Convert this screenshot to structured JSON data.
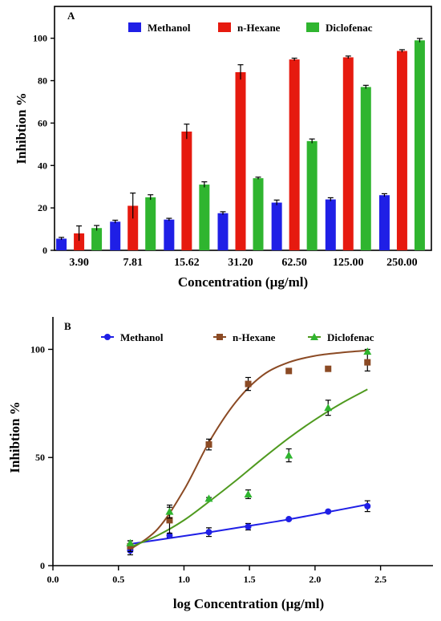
{
  "colors": {
    "methanol": "#1f1fe6",
    "nhexane_bar": "#e61a0f",
    "nhexane_line": "#8b4a24",
    "diclofenac": "#2fb52f",
    "diclofenac_line": "#4f9a1f"
  },
  "chart_data": [
    {
      "panel": "A",
      "type": "bar",
      "xlabel": "Concentration (µg/ml)",
      "ylabel": "Inhibtion %",
      "ylim": [
        0,
        115
      ],
      "yticks": [
        0,
        20,
        40,
        60,
        80,
        100
      ],
      "categories": [
        "3.90",
        "7.81",
        "15.62",
        "31.20",
        "62.50",
        "125.00",
        "250.00"
      ],
      "legend_position": "top",
      "series": [
        {
          "name": "Methanol",
          "values": [
            5.5,
            13.5,
            14.5,
            17.5,
            22.5,
            24,
            26
          ],
          "errors": [
            0.6,
            0.7,
            0.6,
            0.7,
            1.2,
            0.8,
            0.7
          ]
        },
        {
          "name": "n-Hexane",
          "values": [
            8,
            21,
            56,
            84,
            90,
            91,
            94
          ],
          "errors": [
            3.5,
            6,
            3.5,
            3.5,
            0.6,
            0.6,
            0.6
          ]
        },
        {
          "name": "Diclofenac",
          "values": [
            10.5,
            25,
            31,
            34,
            51.5,
            77,
            99
          ],
          "errors": [
            1.2,
            1.2,
            1.3,
            0.5,
            1.0,
            0.8,
            0.9
          ]
        }
      ]
    },
    {
      "panel": "B",
      "type": "scatter",
      "xlabel": "log Concentration (µg/ml)",
      "ylabel": "Inhibtion %",
      "xlim": [
        0,
        2.9
      ],
      "ylim": [
        0,
        115
      ],
      "xticks": [
        0.0,
        0.5,
        1.0,
        1.5,
        2.0,
        2.5
      ],
      "xtick_labels": [
        "0.0",
        "0.5",
        "1.0",
        "1.5",
        "2.0",
        "2.5"
      ],
      "yticks": [
        0,
        50,
        100
      ],
      "legend_position": "top",
      "series": [
        {
          "name": "Methanol",
          "marker": "circle",
          "x": [
            0.59,
            0.89,
            1.19,
            1.49,
            1.8,
            2.1,
            2.4
          ],
          "y": [
            7,
            14,
            15.5,
            18,
            21.5,
            25,
            27.5
          ],
          "errors": [
            2,
            1,
            2,
            1.5,
            0.5,
            0.5,
            2.5
          ]
        },
        {
          "name": "n-Hexane",
          "marker": "square",
          "x": [
            0.59,
            0.89,
            1.19,
            1.49,
            1.8,
            2.1,
            2.4
          ],
          "y": [
            9,
            21,
            56,
            84,
            90,
            91,
            94
          ],
          "errors": [
            2.5,
            6,
            2.5,
            3,
            0.5,
            0.5,
            4
          ]
        },
        {
          "name": "Diclofenac",
          "marker": "triangle",
          "x": [
            0.59,
            0.89,
            1.19,
            1.49,
            1.8,
            2.1,
            2.4
          ],
          "y": [
            10.5,
            25,
            31,
            33,
            51,
            73,
            99
          ],
          "errors": [
            1,
            3,
            0.5,
            2,
            3,
            3.5,
            1
          ]
        }
      ],
      "fits": [
        {
          "series": "Methanol",
          "x": [
            0.59,
            0.9,
            1.2,
            1.5,
            1.8,
            2.1,
            2.4
          ],
          "y": [
            10,
            12.8,
            15.5,
            18.4,
            21.4,
            24.8,
            28.3
          ]
        },
        {
          "series": "n-Hexane",
          "x": [
            0.59,
            0.8,
            1.0,
            1.2,
            1.4,
            1.6,
            1.8,
            2.0,
            2.2,
            2.4
          ],
          "y": [
            7.5,
            17,
            35,
            58,
            76,
            88,
            94,
            97,
            98.5,
            99.5
          ]
        },
        {
          "series": "Diclofenac",
          "x": [
            0.59,
            0.8,
            1.0,
            1.2,
            1.4,
            1.6,
            1.8,
            2.0,
            2.2,
            2.4
          ],
          "y": [
            8.5,
            14,
            21,
            30,
            39.5,
            49.5,
            59,
            67.5,
            75,
            81.5
          ]
        }
      ]
    }
  ]
}
